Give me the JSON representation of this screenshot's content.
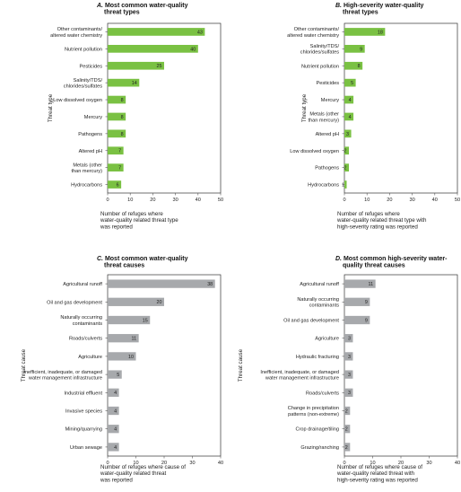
{
  "colors": {
    "green": "#7ac143",
    "gray": "#a7a9ac",
    "axis": "#555555",
    "border": "#333333"
  },
  "chart_data": [
    {
      "type": "bar",
      "letter": "A.",
      "title": [
        "Most common water-quality",
        "threat types"
      ],
      "categories": [
        [
          "Other contaminants/",
          "altered water chemistry"
        ],
        [
          "Nutrient pollution"
        ],
        [
          "Pesticides"
        ],
        [
          "Salinity/TDS/",
          "chlorides/sulfates"
        ],
        [
          "Low dissolved oxygen"
        ],
        [
          "Mercury"
        ],
        [
          "Pathogens"
        ],
        [
          "Altered pH"
        ],
        [
          "Metals (other",
          "than mercury)"
        ],
        [
          "Hydrocarbons"
        ]
      ],
      "values": [
        43,
        40,
        25,
        14,
        8,
        8,
        8,
        7,
        7,
        6
      ],
      "xlim": [
        0,
        50
      ],
      "ticks": [
        0,
        10,
        20,
        30,
        40,
        50
      ],
      "xlabel": [
        "Number of refuges where",
        "water-quality related threat type",
        "was reported"
      ],
      "ylabel": "Threat type",
      "color": "green"
    },
    {
      "type": "bar",
      "letter": "B.",
      "title": [
        "High-severity water-quality",
        "threat types"
      ],
      "categories": [
        [
          "Other contaminants/",
          "altered water chemistry"
        ],
        [
          "Salinity/TDS/",
          "chlorides/sulfates"
        ],
        [
          "Nutrient pollution"
        ],
        [
          "Pesticides"
        ],
        [
          "Mercury"
        ],
        [
          "Metals (other",
          "than mercury)"
        ],
        [
          "Altered pH"
        ],
        [
          "Low dissolved oxygen"
        ],
        [
          "Pathogens"
        ],
        [
          "Hydrocarbons"
        ]
      ],
      "values": [
        18,
        9,
        8,
        5,
        4,
        4,
        3,
        2,
        2,
        1
      ],
      "xlim": [
        0,
        50
      ],
      "ticks": [
        0,
        10,
        20,
        30,
        40,
        50
      ],
      "xlabel": [
        "Number of refuges where",
        "water-quality related threat type with",
        "high-severity rating was reported"
      ],
      "ylabel": "Threat type",
      "color": "green"
    },
    {
      "type": "bar",
      "letter": "C.",
      "title": [
        "Most common water-quality",
        "threat causes"
      ],
      "categories": [
        [
          "Agricultural runoff"
        ],
        [
          "Oil and gas development"
        ],
        [
          "Naturally occurring",
          "contaminants"
        ],
        [
          "Roads/culverts"
        ],
        [
          "Agriculture"
        ],
        [
          "Inefficient, inadequate, or damaged",
          "water management infrastructure"
        ],
        [
          "Industrial effluent"
        ],
        [
          "Invasive species"
        ],
        [
          "Mining/quarrying"
        ],
        [
          "Urban sewage"
        ]
      ],
      "values": [
        38,
        20,
        15,
        11,
        10,
        5,
        4,
        4,
        4,
        4
      ],
      "xlim": [
        0,
        40
      ],
      "ticks": [
        0,
        10,
        20,
        30,
        40
      ],
      "xlabel": [
        "Number of refuges where cause of",
        "water-quality related threat",
        "was reported"
      ],
      "ylabel": "Threat cause",
      "color": "gray"
    },
    {
      "type": "bar",
      "letter": "D.",
      "title": [
        "Most common high-severity water-",
        "quality threat causes"
      ],
      "categories": [
        [
          "Agricultural runoff"
        ],
        [
          "Naturally occurring",
          "contaminants"
        ],
        [
          "Oil and gas development"
        ],
        [
          "Agriculture"
        ],
        [
          "Hydraulic fracturing"
        ],
        [
          "Inefficient, inadequate, or damaged",
          "water management infrastructure"
        ],
        [
          "Roads/culverts"
        ],
        [
          "Change in precipitation",
          "patterns (non-extreme)"
        ],
        [
          "Crop drainage/tiling"
        ],
        [
          "Grazing/ranching"
        ]
      ],
      "values": [
        11,
        9,
        9,
        3,
        3,
        3,
        3,
        2,
        2,
        2
      ],
      "xlim": [
        0,
        40
      ],
      "ticks": [
        0,
        10,
        20,
        30,
        40
      ],
      "xlabel": [
        "Number of refuges where cause of",
        "water-quality related threat with",
        "high-severity rating was reported"
      ],
      "ylabel": "Threat cause",
      "color": "gray"
    }
  ]
}
